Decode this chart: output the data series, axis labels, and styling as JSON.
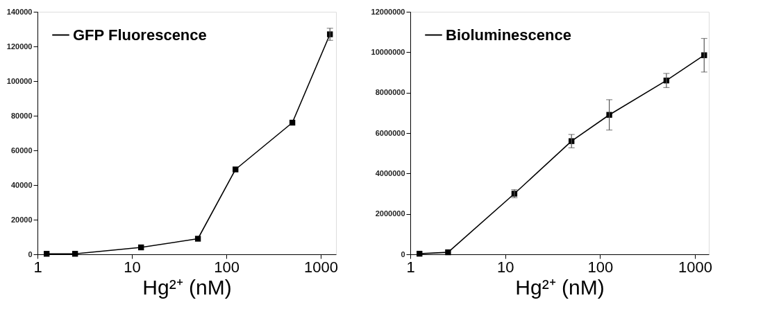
{
  "chart_data": [
    {
      "type": "line",
      "xlabel": "Hg²⁺ (nM)",
      "log": "x",
      "marker": "square",
      "line_style": "solid",
      "legend": "top left",
      "grid": false,
      "x": [
        1.25,
        2.5,
        12.5,
        50,
        125,
        500,
        1250
      ],
      "xlim": [
        1,
        1450
      ],
      "xticks": [
        1,
        10,
        100,
        1000
      ],
      "ylim": [
        0,
        140000
      ],
      "yticks": [
        0,
        20000,
        40000,
        60000,
        80000,
        100000,
        120000,
        140000
      ],
      "series": [
        {
          "name": "GFP Fluorescence",
          "color": "#000000",
          "values": [
            300,
            300,
            4000,
            9000,
            49000,
            76000,
            127000
          ],
          "errors": [
            null,
            null,
            null,
            null,
            null,
            null,
            3500
          ]
        }
      ]
    },
    {
      "type": "line",
      "xlabel": "Hg²⁺ (nM)",
      "log": "x",
      "marker": "square",
      "line_style": "solid",
      "legend": "top left",
      "grid": false,
      "x": [
        1.25,
        2.5,
        12.5,
        50,
        125,
        500,
        1250
      ],
      "xlim": [
        1,
        1400
      ],
      "xticks": [
        1,
        10,
        100,
        1000
      ],
      "ylim": [
        0,
        12000000
      ],
      "yticks": [
        0,
        2000000,
        4000000,
        6000000,
        8000000,
        10000000,
        12000000
      ],
      "series": [
        {
          "name": "Bioluminescence",
          "color": "#000000",
          "values": [
            30000,
            100000,
            3000000,
            5600000,
            6900000,
            8600000,
            9850000
          ],
          "errors": [
            null,
            null,
            200000,
            330000,
            750000,
            350000,
            830000
          ]
        }
      ]
    }
  ]
}
